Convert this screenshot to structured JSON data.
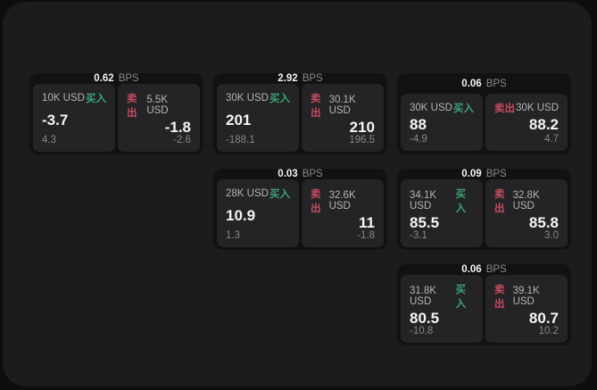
{
  "colors": {
    "outer-bg": "#0e0e0f",
    "panel-bg": "#1c1c1e",
    "card-bg": "#121214",
    "tile-bg": "#242427",
    "buy-green": "#3aa473",
    "sell-red": "#c74b61"
  },
  "labels": {
    "bps_unit": "BPS",
    "buy": "买入",
    "sell": "卖出"
  },
  "cards": [
    {
      "bps": "0.62",
      "buy": {
        "amount": "10K USD",
        "value": "-3.7",
        "delta": "4.3"
      },
      "sell": {
        "amount": "5.5K USD",
        "value": "-1.8",
        "delta": "-2.6"
      }
    },
    {
      "bps": "2.92",
      "buy": {
        "amount": "30K USD",
        "value": "201",
        "delta": "-188.1"
      },
      "sell": {
        "amount": "30.1K USD",
        "value": "210",
        "delta": "196.5"
      }
    },
    {
      "bps": "0.06",
      "buy": {
        "amount": "30K USD",
        "value": "88",
        "delta": "-4.9"
      },
      "sell": {
        "amount": "30K USD",
        "value": "88.2",
        "delta": "4.7"
      }
    },
    {
      "bps": "0.03",
      "buy": {
        "amount": "28K USD",
        "value": "10.9",
        "delta": "1.3"
      },
      "sell": {
        "amount": "32.6K USD",
        "value": "11",
        "delta": "-1.8"
      }
    },
    {
      "bps": "0.09",
      "buy": {
        "amount": "34.1K USD",
        "value": "85.5",
        "delta": "-3.1"
      },
      "sell": {
        "amount": "32.8K USD",
        "value": "85.8",
        "delta": "3.0"
      }
    },
    {
      "bps": "0.06",
      "buy": {
        "amount": "31.8K USD",
        "value": "80.5",
        "delta": "-10.8"
      },
      "sell": {
        "amount": "39.1K USD",
        "value": "80.7",
        "delta": "10.2"
      }
    }
  ]
}
